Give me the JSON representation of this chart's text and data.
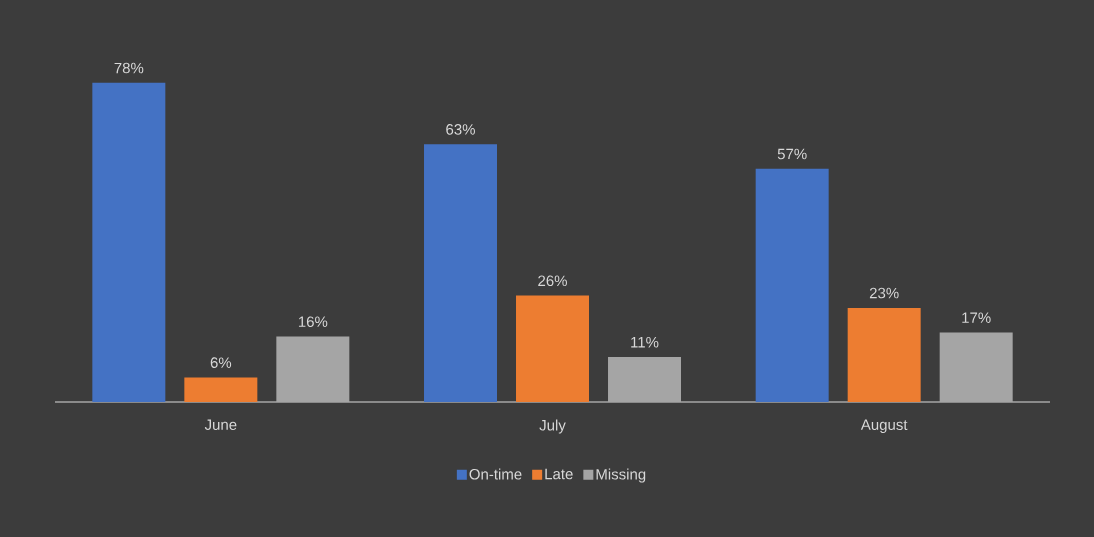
{
  "chart_data": {
    "type": "bar",
    "categories": [
      "June",
      "July",
      "August"
    ],
    "series": [
      {
        "name": "On-time",
        "color": "#4472c4",
        "values": [
          78,
          63,
          57
        ],
        "value_labels": [
          "78%",
          "63%",
          "57%"
        ]
      },
      {
        "name": "Late",
        "color": "#ed7d31",
        "values": [
          6,
          26,
          23
        ],
        "value_labels": [
          "6%",
          "26%",
          "23%"
        ]
      },
      {
        "name": "Missing",
        "color": "#a5a5a5",
        "values": [
          16,
          11,
          17
        ],
        "value_labels": [
          "16%",
          "11%",
          "17%"
        ]
      }
    ],
    "legend": "bottom",
    "tick_labels": "x"
  }
}
